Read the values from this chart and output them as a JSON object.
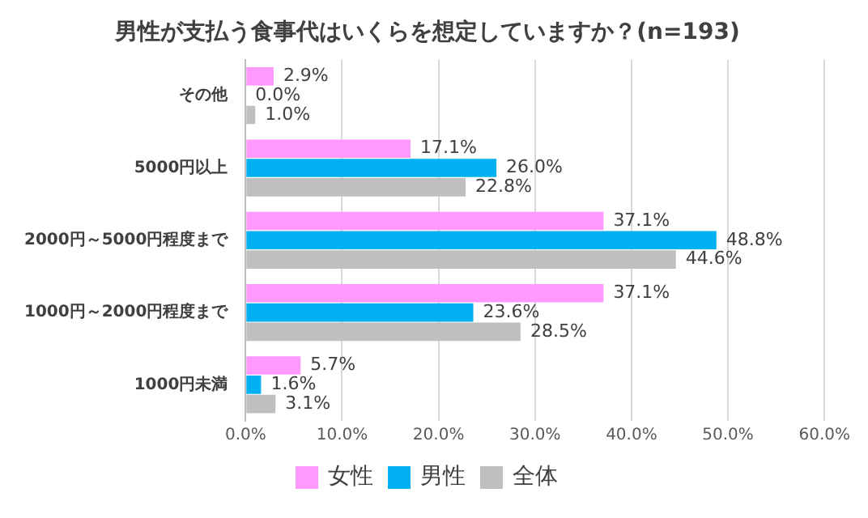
{
  "chart_data": {
    "type": "bar",
    "orientation": "horizontal",
    "title": "男性が支払う食事代はいくらを想定していますか？(n=193)",
    "categories": [
      "その他",
      "5000円以上",
      "2000円～5000円程度まで",
      "1000円～2000円程度まで",
      "1000円未満"
    ],
    "series": [
      {
        "name": "女性",
        "color": "#ff99ff",
        "values": [
          2.9,
          17.1,
          37.1,
          37.1,
          5.7
        ],
        "value_labels": [
          "2.9%",
          "17.1%",
          "37.1%",
          "37.1%",
          "5.7%"
        ]
      },
      {
        "name": "男性",
        "color": "#00b0f0",
        "values": [
          0.0,
          26.0,
          48.8,
          23.6,
          1.6
        ],
        "value_labels": [
          "0.0%",
          "26.0%",
          "48.8%",
          "23.6%",
          "1.6%"
        ]
      },
      {
        "name": "全体",
        "color": "#bfbfbf",
        "values": [
          1.0,
          22.8,
          44.6,
          28.5,
          3.1
        ],
        "value_labels": [
          "1.0%",
          "22.8%",
          "44.6%",
          "28.5%",
          "3.1%"
        ]
      }
    ],
    "xlim": [
      0,
      60
    ],
    "xticks": [
      {
        "value": 0,
        "label": "0.0%"
      },
      {
        "value": 10,
        "label": "10.0%"
      },
      {
        "value": 20,
        "label": "20.0%"
      },
      {
        "value": 30,
        "label": "30.0%"
      },
      {
        "value": 40,
        "label": "40.0%"
      },
      {
        "value": 50,
        "label": "50.0%"
      },
      {
        "value": 60,
        "label": "60.0%"
      }
    ],
    "grid": "x",
    "legend": "bottom"
  }
}
